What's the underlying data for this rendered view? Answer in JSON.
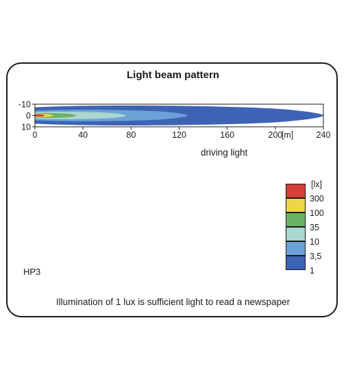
{
  "chart_data": {
    "type": "heatmap",
    "title": "Light beam pattern",
    "subtitle": "driving light",
    "x_unit": "[m]",
    "xlim": [
      0,
      240
    ],
    "ylim": [
      -10,
      10
    ],
    "x_ticks": [
      "0",
      "40",
      "80",
      "120",
      "160",
      "200",
      "240"
    ],
    "y_ticks": [
      "-10",
      "0",
      "10"
    ],
    "legend_unit": "[lx]",
    "levels": [
      {
        "lux": "300",
        "color": "#d43f3a",
        "reach_m": 8,
        "half_width_m": 1.0
      },
      {
        "lux": "100",
        "color": "#f0d44a",
        "reach_m": 15,
        "half_width_m": 1.5
      },
      {
        "lux": "35",
        "color": "#6ab165",
        "reach_m": 34,
        "half_width_m": 2.2
      },
      {
        "lux": "10",
        "color": "#a9d6ce",
        "reach_m": 76,
        "half_width_m": 3.4
      },
      {
        "lux": "3,5",
        "color": "#6aa2d8",
        "reach_m": 127,
        "half_width_m": 5.2
      },
      {
        "lux": "1",
        "color": "#3e63b4",
        "reach_m": 240,
        "half_width_m": 9.0
      }
    ],
    "grid": false,
    "legend_position": "right"
  },
  "model": "HP3",
  "footnote": "Illumination of 1 lux is sufficient light to read a newspaper"
}
